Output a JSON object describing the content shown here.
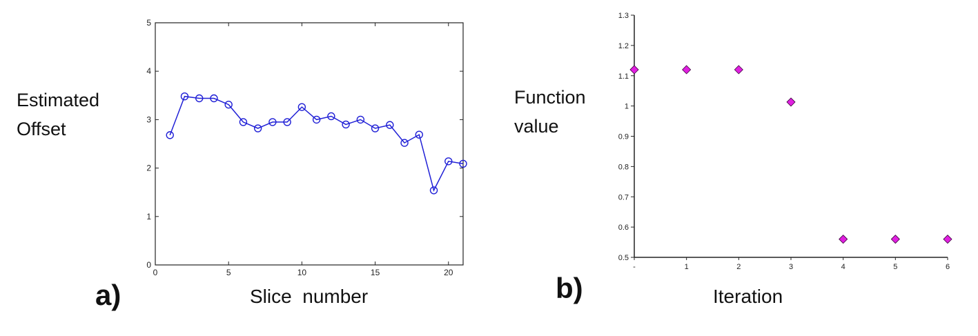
{
  "chart_data": [
    {
      "type": "line",
      "panel_label": "a)",
      "title": "",
      "ylabel_lines": [
        "Estimated",
        "Offset"
      ],
      "xlabel": "Slice  number",
      "xlim": [
        0,
        21
      ],
      "ylim": [
        0,
        5
      ],
      "xticks": [
        0,
        5,
        10,
        15,
        20
      ],
      "yticks": [
        0,
        1,
        2,
        3,
        4,
        5
      ],
      "grid": false,
      "legend": "none",
      "marker": "circle",
      "color": "#1f1fd6",
      "x": [
        1,
        2,
        3,
        4,
        5,
        6,
        7,
        8,
        9,
        10,
        11,
        12,
        13,
        14,
        15,
        16,
        17,
        18,
        19,
        20,
        21
      ],
      "y": [
        2.68,
        3.48,
        3.44,
        3.44,
        3.31,
        2.95,
        2.82,
        2.95,
        2.95,
        3.26,
        3.0,
        3.07,
        2.9,
        3.0,
        2.82,
        2.89,
        2.52,
        2.69,
        1.54,
        2.14,
        2.09
      ]
    },
    {
      "type": "scatter",
      "panel_label": "b)",
      "title": "",
      "ylabel_lines": [
        "Function",
        "value"
      ],
      "xlabel": "Iteration",
      "xlim": [
        0,
        6
      ],
      "ylim": [
        0.5,
        1.3
      ],
      "xtick_labels": [
        "-",
        "1",
        "2",
        "3",
        "4",
        "5",
        "6"
      ],
      "yticks": [
        0.5,
        0.6,
        0.7,
        0.8,
        0.9,
        1.0,
        1.1,
        1.2,
        1.3
      ],
      "ytick_labels": [
        "0.5",
        "0.6",
        "0.7",
        "0.8",
        "0.9",
        "1",
        "1.1",
        "1.2",
        "1.3"
      ],
      "grid": false,
      "legend": "none",
      "marker": "diamond",
      "color": "#e020e0",
      "x": [
        0,
        1,
        2,
        3,
        4,
        5,
        6
      ],
      "y": [
        1.12,
        1.12,
        1.12,
        1.013,
        0.56,
        0.56,
        0.56
      ]
    }
  ]
}
